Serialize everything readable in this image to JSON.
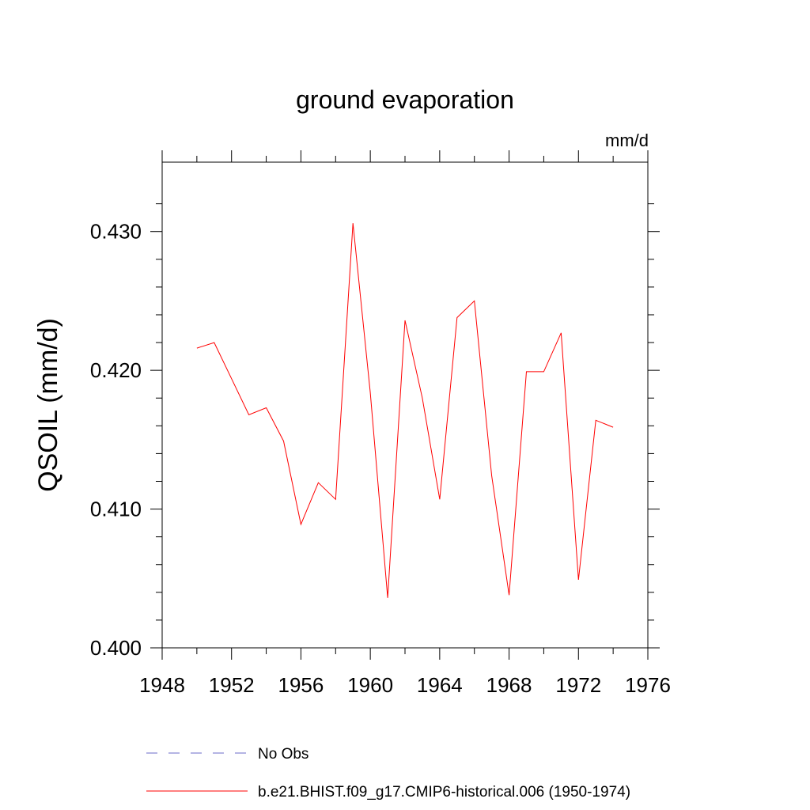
{
  "chart_data": {
    "type": "line",
    "title": "ground evaporation",
    "units": "mm/d",
    "xlabel": "",
    "ylabel": "QSOIL  (mm/d)",
    "xlim": [
      1948,
      1976
    ],
    "ylim": [
      0.4,
      0.435
    ],
    "x_ticks": [
      1948,
      1952,
      1956,
      1960,
      1964,
      1968,
      1972,
      1976
    ],
    "x_minor_ticks": [
      1950,
      1954,
      1958,
      1962,
      1966,
      1970,
      1974
    ],
    "y_ticks": [
      0.4,
      0.41,
      0.42,
      0.43
    ],
    "y_tick_labels": [
      "0.400",
      "0.410",
      "0.420",
      "0.430"
    ],
    "y_minor_step": 0.002,
    "grid": false,
    "series": [
      {
        "name": "b.e21.BHIST.f09_g17.CMIP6-historical.006 (1950-1974)",
        "color": "#ff0000",
        "dash": "solid",
        "x": [
          1950,
          1951,
          1952,
          1953,
          1954,
          1955,
          1956,
          1957,
          1958,
          1959,
          1960,
          1961,
          1962,
          1963,
          1964,
          1965,
          1966,
          1967,
          1968,
          1969,
          1970,
          1971,
          1972,
          1973,
          1974
        ],
        "values": [
          0.4216,
          0.422,
          0.4194,
          0.4168,
          0.4173,
          0.4149,
          0.4089,
          0.4119,
          0.4107,
          0.4306,
          0.4184,
          0.4036,
          0.4236,
          0.418,
          0.4107,
          0.4238,
          0.425,
          0.4124,
          0.4038,
          0.4199,
          0.4199,
          0.4227,
          0.4049,
          0.4164,
          0.4159
        ]
      }
    ],
    "legend": [
      {
        "label": "No Obs",
        "color": "#6b6bc8",
        "dash": "dashed"
      },
      {
        "label": "b.e21.BHIST.f09_g17.CMIP6-historical.006 (1950-1974)",
        "color": "#ff0000",
        "dash": "solid"
      }
    ],
    "legend_position": "bottom"
  }
}
